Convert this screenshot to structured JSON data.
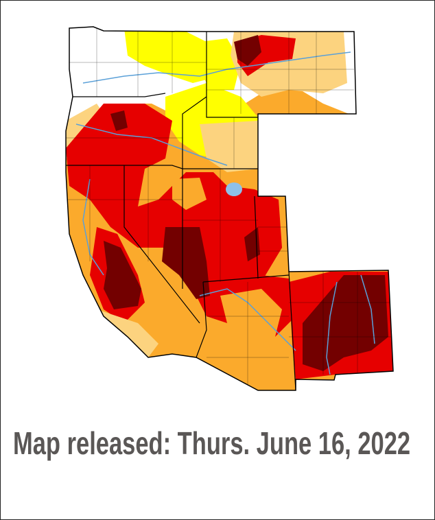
{
  "caption": "Map released: Thurs. June 16, 2022"
}
